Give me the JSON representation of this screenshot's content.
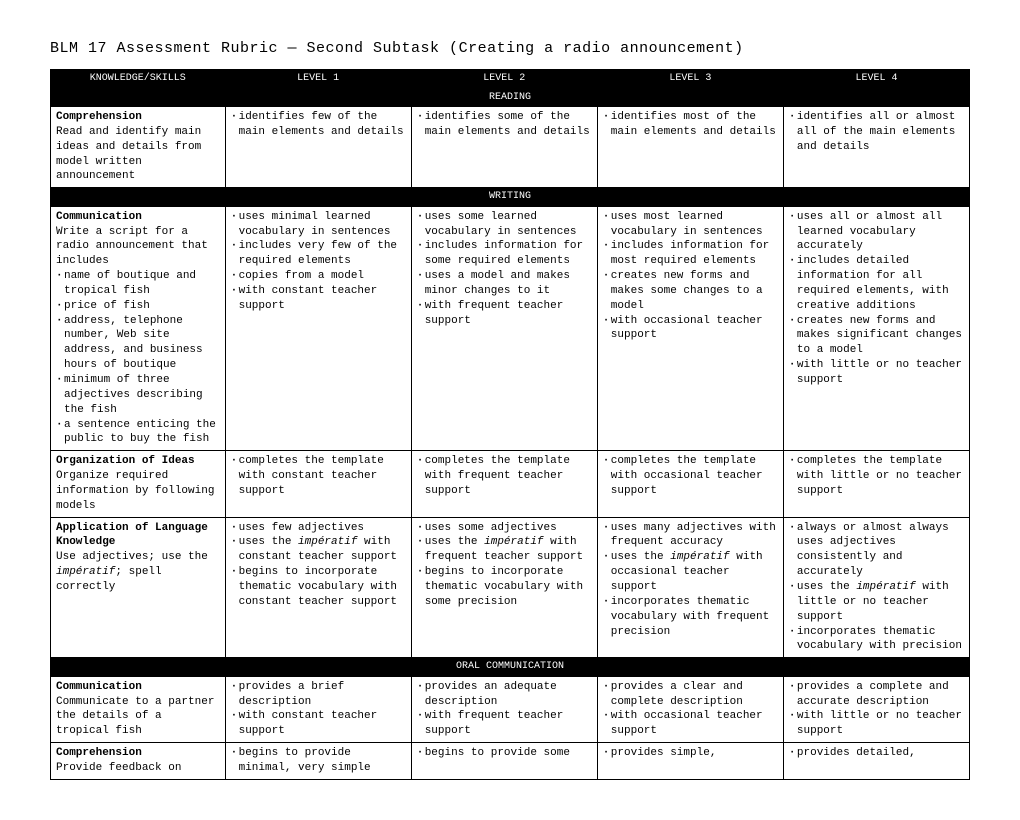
{
  "title": "BLM 17 Assessment Rubric — Second Subtask (Creating a radio announcement)",
  "headers": [
    "KNOWLEDGE/SKILLS",
    "LEVEL 1",
    "LEVEL 2",
    "LEVEL 3",
    "LEVEL 4"
  ],
  "sections": [
    {
      "name": "READING",
      "rows": [
        {
          "title": "Comprehension",
          "desc": "Read and identify main ideas and details from model written announcement",
          "levels": [
            [
              "identifies few of the main elements and details"
            ],
            [
              "identifies some of the main elements and details"
            ],
            [
              "identifies most of the main elements and details"
            ],
            [
              "identifies all or almost all of the main elements and details"
            ]
          ]
        }
      ]
    },
    {
      "name": "WRITING",
      "rows": [
        {
          "title": "Communication",
          "desc": "Write a script for a radio announcement that includes",
          "desc_bullets": [
            "name of boutique and tropical fish",
            "price of fish",
            "address, telephone number, Web site address, and business hours of boutique",
            "minimum of three adjectives describing the fish",
            "a sentence enticing the public to buy the fish"
          ],
          "levels": [
            [
              "uses minimal learned vocabulary in sentences",
              "includes very few of the required elements",
              "copies from a model",
              "with constant teacher support"
            ],
            [
              "uses some learned vocabulary in sentences",
              "includes information for some required elements",
              "uses a model and makes minor changes to it",
              "with frequent teacher support"
            ],
            [
              "uses most learned vocabulary in sentences",
              "includes information for most required elements",
              "creates new forms and makes some changes to a model",
              "with occasional teacher support"
            ],
            [
              "uses all or almost all learned vocabulary accurately",
              "includes detailed information for all required elements, with creative additions",
              "creates new forms and makes significant changes to a model",
              "with little or no teacher support"
            ]
          ]
        },
        {
          "title": "Organization of Ideas",
          "desc": "Organize required information by following models",
          "levels": [
            [
              "completes the template with constant teacher support"
            ],
            [
              "completes the template with frequent teacher support"
            ],
            [
              "completes the template with occasional teacher support"
            ],
            [
              "completes the template with little or no teacher support"
            ]
          ]
        },
        {
          "title": "Application of Language Knowledge",
          "desc_html": "Use adjectives; use the <span class=\"italic\">impératif</span>; spell correctly",
          "levels_html": [
            [
              "uses few adjectives",
              "uses the <span class=\"italic\">impératif</span> with constant teacher support",
              "begins to incorporate thematic vocabulary with constant teacher support"
            ],
            [
              "uses some adjectives",
              "uses the <span class=\"italic\">impératif</span> with frequent teacher support",
              "begins to incorporate thematic vocabulary with some precision"
            ],
            [
              "uses many adjectives with frequent accuracy",
              "uses the <span class=\"italic\">impératif</span> with occasional teacher support",
              "incorporates thematic vocabulary with frequent precision"
            ],
            [
              "always or almost always uses adjectives consistently and accurately",
              "uses the <span class=\"italic\">impératif</span> with little or no teacher support",
              "incorporates thematic vocabulary with precision"
            ]
          ]
        }
      ]
    },
    {
      "name": "ORAL COMMUNICATION",
      "rows": [
        {
          "title": "Communication",
          "desc": "Communicate to a partner the details of a tropical fish",
          "levels": [
            [
              "provides a brief description",
              "with constant teacher support"
            ],
            [
              "provides an adequate description",
              "with frequent teacher support"
            ],
            [
              "provides a clear and complete description",
              "with occasional teacher support"
            ],
            [
              "provides a complete and accurate description",
              "with little or no teacher support"
            ]
          ]
        },
        {
          "title": "Comprehension",
          "desc": "Provide feedback on",
          "levels": [
            [
              "begins to provide minimal, very simple"
            ],
            [
              "begins to provide some"
            ],
            [
              "provides simple,"
            ],
            [
              "provides detailed,"
            ]
          ]
        }
      ]
    }
  ]
}
